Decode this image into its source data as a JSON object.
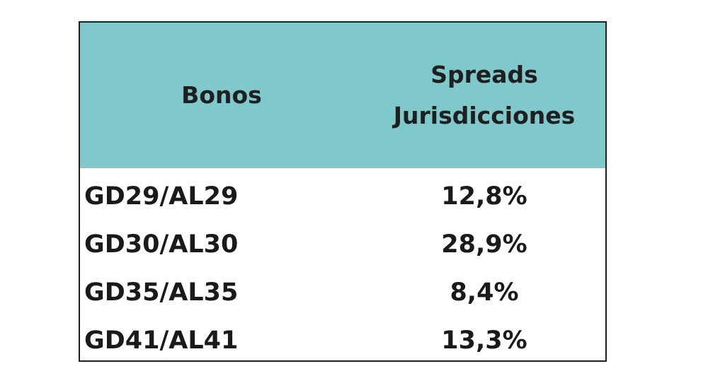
{
  "chart_data": {
    "type": "table",
    "columns": [
      "Bonos",
      "Spreads",
      "Jurisdicciones"
    ],
    "header": {
      "bonos": "Bonos",
      "spreads_line1": "Spreads",
      "spreads_line2": "Jurisdicciones"
    },
    "rows": [
      {
        "bono": "GD29/AL29",
        "spread": "12,8%"
      },
      {
        "bono": "GD30/AL30",
        "spread": "28,9%"
      },
      {
        "bono": "GD35/AL35",
        "spread": "8,4%"
      },
      {
        "bono": "GD41/AL41",
        "spread": "13,3%"
      }
    ]
  },
  "colors": {
    "header_bg": "#7fc8cb",
    "border": "#1f1f1f",
    "text": "#1a1a1a"
  }
}
